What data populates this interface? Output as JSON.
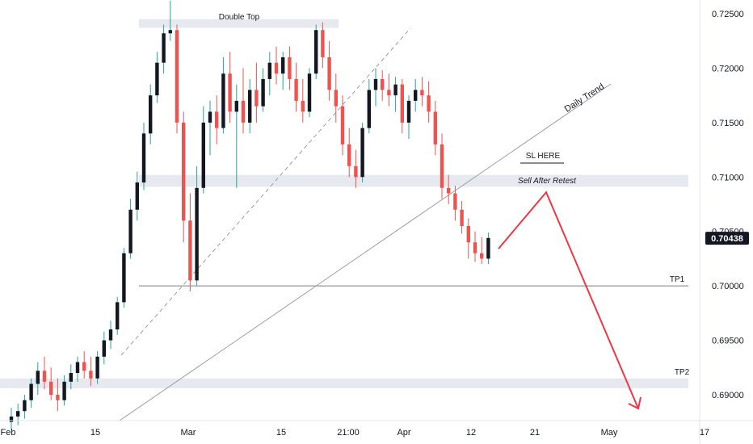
{
  "chart_data": {
    "type": "candlestick",
    "ylim": [
      0.6875,
      0.7265
    ],
    "price_ticks": [
      "0.72500",
      "0.72000",
      "0.71500",
      "0.71000",
      "0.70500",
      "0.70000",
      "0.69500",
      "0.69000"
    ],
    "price_tick_values": [
      0.725,
      0.72,
      0.715,
      0.71,
      0.705,
      0.7,
      0.695,
      0.69
    ],
    "x_ticks": [
      {
        "label": "Feb",
        "day": 0
      },
      {
        "label": "15",
        "day": 14
      },
      {
        "label": "Mar",
        "day": 28
      },
      {
        "label": "15",
        "day": 42
      },
      {
        "label": "21:00",
        "day": 52
      },
      {
        "label": "Apr",
        "day": 59
      },
      {
        "label": "12",
        "day": 70
      },
      {
        "label": "21",
        "day": 79
      },
      {
        "label": "May",
        "day": 89
      },
      {
        "label": "17",
        "day": 105
      }
    ],
    "last_price": "0.70438",
    "last_price_value": 0.70438,
    "colors": {
      "up": "#26a69a",
      "down": "#ef5350",
      "up_body": "#131722",
      "annotation": "#f23645",
      "line": "#9e9e9e",
      "zone": "#e0e3eb",
      "badge": "#131722"
    },
    "annotations": {
      "double_top": "Double Top",
      "daily_trend": "Daily Trend",
      "sl_here": "SL HERE",
      "sell_after_retest": "Sell After Retest",
      "tp1": "TP1",
      "tp2": "TP2"
    },
    "levels": {
      "double_top_zone": [
        0.7237,
        0.7245
      ],
      "sell_zone": [
        0.7091,
        0.7102
      ],
      "tp1": 0.7,
      "tp2_zone": [
        0.6906,
        0.6915
      ]
    },
    "projection": [
      {
        "day": 73,
        "price": 0.7046
      },
      {
        "day": 81,
        "price": 0.7089
      },
      {
        "day": 95,
        "price": 0.692
      }
    ],
    "candles": [
      [
        0.6875,
        0.6888,
        0.6868,
        0.688
      ],
      [
        0.688,
        0.6892,
        0.6872,
        0.6885
      ],
      [
        0.6885,
        0.69,
        0.6878,
        0.6895
      ],
      [
        0.6895,
        0.6915,
        0.6888,
        0.691
      ],
      [
        0.691,
        0.693,
        0.69,
        0.6922
      ],
      [
        0.6922,
        0.6935,
        0.6905,
        0.6912
      ],
      [
        0.6912,
        0.6925,
        0.6895,
        0.69
      ],
      [
        0.69,
        0.6915,
        0.6885,
        0.6895
      ],
      [
        0.6895,
        0.6918,
        0.689,
        0.6912
      ],
      [
        0.6912,
        0.6928,
        0.6905,
        0.692
      ],
      [
        0.692,
        0.6935,
        0.6912,
        0.693
      ],
      [
        0.693,
        0.694,
        0.6915,
        0.6922
      ],
      [
        0.6922,
        0.6935,
        0.6908,
        0.6915
      ],
      [
        0.6915,
        0.694,
        0.691,
        0.6935
      ],
      [
        0.6935,
        0.6958,
        0.6928,
        0.695
      ],
      [
        0.695,
        0.6968,
        0.6942,
        0.696
      ],
      [
        0.696,
        0.699,
        0.6955,
        0.6985
      ],
      [
        0.6985,
        0.7035,
        0.698,
        0.703
      ],
      [
        0.703,
        0.708,
        0.7025,
        0.707
      ],
      [
        0.707,
        0.7105,
        0.706,
        0.7095
      ],
      [
        0.7095,
        0.715,
        0.7088,
        0.714
      ],
      [
        0.714,
        0.7185,
        0.713,
        0.7175
      ],
      [
        0.7175,
        0.7215,
        0.7168,
        0.7205
      ],
      [
        0.7205,
        0.724,
        0.7195,
        0.7232
      ],
      [
        0.7232,
        0.7262,
        0.7225,
        0.7235
      ],
      [
        0.7235,
        0.724,
        0.714,
        0.715
      ],
      [
        0.715,
        0.716,
        0.704,
        0.706
      ],
      [
        0.706,
        0.7085,
        0.6995,
        0.7005
      ],
      [
        0.7005,
        0.711,
        0.7,
        0.709
      ],
      [
        0.709,
        0.7165,
        0.7085,
        0.715
      ],
      [
        0.715,
        0.717,
        0.712,
        0.716
      ],
      [
        0.716,
        0.7175,
        0.713,
        0.7145
      ],
      [
        0.7145,
        0.721,
        0.714,
        0.7195
      ],
      [
        0.7195,
        0.7215,
        0.715,
        0.716
      ],
      [
        0.716,
        0.7185,
        0.709,
        0.717
      ],
      [
        0.717,
        0.72,
        0.714,
        0.715
      ],
      [
        0.715,
        0.719,
        0.714,
        0.718
      ],
      [
        0.718,
        0.7205,
        0.715,
        0.7165
      ],
      [
        0.7165,
        0.72,
        0.716,
        0.719
      ],
      [
        0.719,
        0.7215,
        0.7175,
        0.7205
      ],
      [
        0.7205,
        0.722,
        0.7185,
        0.7195
      ],
      [
        0.7195,
        0.7215,
        0.718,
        0.721
      ],
      [
        0.721,
        0.722,
        0.718,
        0.719
      ],
      [
        0.719,
        0.7205,
        0.716,
        0.717
      ],
      [
        0.717,
        0.719,
        0.715,
        0.716
      ],
      [
        0.716,
        0.72,
        0.7155,
        0.7195
      ],
      [
        0.7195,
        0.724,
        0.719,
        0.7235
      ],
      [
        0.7235,
        0.7242,
        0.72,
        0.721
      ],
      [
        0.721,
        0.7225,
        0.717,
        0.718
      ],
      [
        0.718,
        0.7195,
        0.715,
        0.7165
      ],
      [
        0.7165,
        0.7175,
        0.712,
        0.713
      ],
      [
        0.713,
        0.7145,
        0.71,
        0.711
      ],
      [
        0.711,
        0.7125,
        0.709,
        0.71
      ],
      [
        0.71,
        0.715,
        0.7095,
        0.7145
      ],
      [
        0.7145,
        0.719,
        0.714,
        0.718
      ],
      [
        0.718,
        0.72,
        0.7165,
        0.719
      ],
      [
        0.719,
        0.7198,
        0.717,
        0.718
      ],
      [
        0.718,
        0.7195,
        0.7165,
        0.7175
      ],
      [
        0.7175,
        0.7192,
        0.716,
        0.7185
      ],
      [
        0.7185,
        0.719,
        0.714,
        0.715
      ],
      [
        0.715,
        0.7175,
        0.7135,
        0.717
      ],
      [
        0.717,
        0.719,
        0.716,
        0.718
      ],
      [
        0.718,
        0.7192,
        0.7165,
        0.7175
      ],
      [
        0.7175,
        0.7188,
        0.715,
        0.716
      ],
      [
        0.716,
        0.717,
        0.712,
        0.713
      ],
      [
        0.713,
        0.714,
        0.708,
        0.709
      ],
      [
        0.709,
        0.7102,
        0.7075,
        0.7085
      ],
      [
        0.7085,
        0.7092,
        0.706,
        0.707
      ],
      [
        0.707,
        0.7078,
        0.7048,
        0.7055
      ],
      [
        0.7055,
        0.7062,
        0.7025,
        0.704
      ],
      [
        0.704,
        0.705,
        0.7022,
        0.703
      ],
      [
        0.703,
        0.7045,
        0.702,
        0.7025
      ],
      [
        0.7025,
        0.7049,
        0.702,
        0.7044
      ]
    ]
  }
}
